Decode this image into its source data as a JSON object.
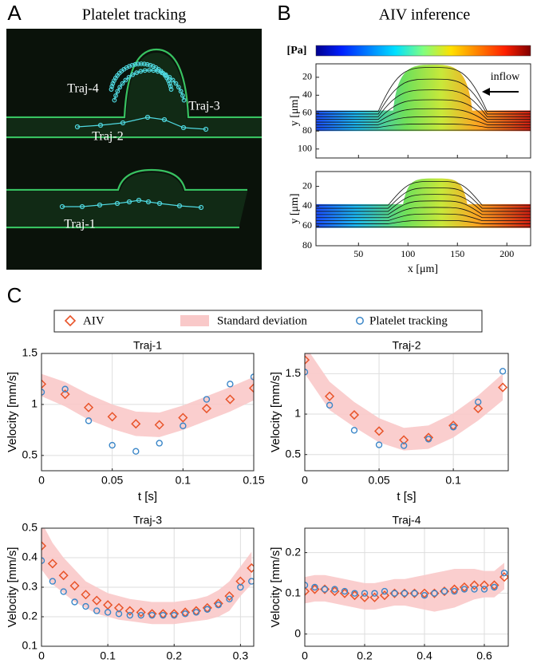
{
  "panel_labels": [
    "A",
    "B",
    "C"
  ],
  "panel_a": {
    "title": "Platelet tracking",
    "trajectory_labels": [
      "Traj-1",
      "Traj-2",
      "Traj-3",
      "Traj-4"
    ]
  },
  "panel_b": {
    "title": "AIV inference",
    "colorbar_label": "[Pa]",
    "annotation": "inflow",
    "xlim": [
      7,
      224
    ],
    "xticks": [
      50,
      100,
      150,
      200
    ],
    "xlabel": "x [μm]",
    "ylabel": "y [μm]",
    "plots": [
      {
        "ylim": [
          5,
          110
        ],
        "yticks": [
          20,
          40,
          60,
          80,
          100
        ]
      },
      {
        "ylim": [
          5,
          80
        ],
        "yticks": [
          20,
          40,
          60,
          80
        ]
      }
    ]
  },
  "legend": [
    {
      "name": "AIV",
      "color": "#e8542a",
      "marker": "diamond"
    },
    {
      "name": "Standard deviation",
      "color": "#f9c9c9",
      "marker": "band"
    },
    {
      "name": "Platelet tracking",
      "color": "#3a86c8",
      "marker": "circle"
    }
  ],
  "chart_data": [
    {
      "type": "scatter",
      "title": "Traj-1",
      "xlabel": "t [s]",
      "ylabel": "Velocity [mm/s]",
      "grid": true,
      "x": [
        0,
        0.0167,
        0.0333,
        0.05,
        0.0667,
        0.0833,
        0.1,
        0.1167,
        0.1333,
        0.15
      ],
      "xlim": [
        0,
        0.15
      ],
      "xticks": [
        0,
        0.05,
        0.1,
        0.15
      ],
      "ylim": [
        0.35,
        1.5
      ],
      "yticks": [
        0.5,
        1,
        1.5
      ],
      "series": [
        {
          "values": [
            1.2,
            1.1,
            0.97,
            0.88,
            0.81,
            0.8,
            0.87,
            0.96,
            1.05,
            1.16
          ]
        },
        {
          "upper": [
            1.3,
            1.22,
            1.1,
            1.0,
            0.93,
            0.92,
            0.99,
            1.08,
            1.17,
            1.27
          ],
          "lower": [
            1.08,
            0.98,
            0.85,
            0.76,
            0.69,
            0.68,
            0.75,
            0.84,
            0.93,
            1.04
          ]
        },
        {
          "values": [
            1.12,
            1.15,
            0.84,
            0.6,
            0.54,
            0.62,
            0.79,
            1.05,
            1.2,
            1.27
          ]
        }
      ]
    },
    {
      "type": "scatter",
      "title": "Traj-2",
      "xlabel": "t [s]",
      "ylabel": "Velocity [mm/s]",
      "grid": true,
      "x": [
        0,
        0.0167,
        0.0333,
        0.05,
        0.0667,
        0.0833,
        0.1,
        0.1167,
        0.1333
      ],
      "xlim": [
        0,
        0.137
      ],
      "xticks": [
        0,
        0.05,
        0.1
      ],
      "ylim": [
        0.3,
        1.75
      ],
      "yticks": [
        0.5,
        1,
        1.5
      ],
      "series": [
        {
          "values": [
            1.67,
            1.22,
            0.99,
            0.79,
            0.68,
            0.71,
            0.86,
            1.07,
            1.33
          ]
        },
        {
          "upper": [
            1.85,
            1.4,
            1.15,
            0.95,
            0.83,
            0.86,
            1.01,
            1.23,
            1.5
          ],
          "lower": [
            1.5,
            1.05,
            0.84,
            0.65,
            0.55,
            0.57,
            0.71,
            0.92,
            1.17
          ]
        },
        {
          "values": [
            1.52,
            1.11,
            0.8,
            0.62,
            0.61,
            0.69,
            0.84,
            1.15,
            1.53
          ]
        }
      ]
    },
    {
      "type": "scatter",
      "title": "Traj-3",
      "xlabel": "t [s]",
      "ylabel": "Velocity [mm/s]",
      "grid": true,
      "x": [
        0,
        0.0167,
        0.0333,
        0.05,
        0.0667,
        0.0833,
        0.1,
        0.1167,
        0.1333,
        0.15,
        0.1667,
        0.1833,
        0.2,
        0.2167,
        0.2333,
        0.25,
        0.2667,
        0.2833,
        0.3,
        0.3167
      ],
      "xlim": [
        0,
        0.32
      ],
      "xticks": [
        0,
        0.1,
        0.2,
        0.3
      ],
      "ylim": [
        0.1,
        0.5
      ],
      "yticks": [
        0.1,
        0.2,
        0.3,
        0.4,
        0.5
      ],
      "series": [
        {
          "values": [
            0.44,
            0.38,
            0.34,
            0.305,
            0.275,
            0.255,
            0.24,
            0.23,
            0.22,
            0.215,
            0.21,
            0.21,
            0.21,
            0.215,
            0.22,
            0.23,
            0.245,
            0.27,
            0.32,
            0.365
          ]
        },
        {
          "upper": [
            0.52,
            0.45,
            0.4,
            0.36,
            0.32,
            0.3,
            0.28,
            0.27,
            0.26,
            0.255,
            0.25,
            0.25,
            0.25,
            0.255,
            0.26,
            0.27,
            0.29,
            0.32,
            0.37,
            0.42
          ],
          "lower": [
            0.36,
            0.31,
            0.28,
            0.25,
            0.23,
            0.21,
            0.2,
            0.19,
            0.185,
            0.18,
            0.175,
            0.175,
            0.175,
            0.18,
            0.185,
            0.19,
            0.2,
            0.22,
            0.27,
            0.31
          ]
        },
        {
          "values": [
            0.39,
            0.32,
            0.285,
            0.25,
            0.235,
            0.22,
            0.215,
            0.21,
            0.205,
            0.205,
            0.205,
            0.205,
            0.205,
            0.21,
            0.215,
            0.225,
            0.24,
            0.26,
            0.3,
            0.32
          ]
        }
      ]
    },
    {
      "type": "scatter",
      "title": "Traj-4",
      "xlabel": "t [s]",
      "ylabel": "Velocity [mm/s]",
      "grid": true,
      "x": [
        0,
        0.0333,
        0.0667,
        0.1,
        0.1333,
        0.1667,
        0.2,
        0.2333,
        0.2667,
        0.3,
        0.3333,
        0.3667,
        0.4,
        0.4333,
        0.4667,
        0.5,
        0.5333,
        0.5667,
        0.6,
        0.6333,
        0.6667
      ],
      "xlim": [
        0,
        0.68
      ],
      "xticks": [
        0,
        0.2,
        0.4,
        0.6
      ],
      "ylim": [
        -0.03,
        0.26
      ],
      "yticks": [
        0,
        0.1,
        0.2
      ],
      "series": [
        {
          "values": [
            0.105,
            0.11,
            0.11,
            0.105,
            0.1,
            0.095,
            0.09,
            0.09,
            0.095,
            0.1,
            0.1,
            0.1,
            0.1,
            0.1,
            0.105,
            0.11,
            0.115,
            0.12,
            0.12,
            0.12,
            0.14
          ]
        },
        {
          "upper": [
            0.14,
            0.145,
            0.145,
            0.14,
            0.135,
            0.13,
            0.125,
            0.125,
            0.13,
            0.135,
            0.135,
            0.14,
            0.145,
            0.15,
            0.155,
            0.16,
            0.16,
            0.16,
            0.155,
            0.155,
            0.175
          ],
          "lower": [
            0.075,
            0.08,
            0.08,
            0.075,
            0.07,
            0.065,
            0.06,
            0.06,
            0.065,
            0.07,
            0.07,
            0.065,
            0.06,
            0.055,
            0.06,
            0.065,
            0.075,
            0.085,
            0.09,
            0.09,
            0.11
          ]
        },
        {
          "values": [
            0.12,
            0.115,
            0.11,
            0.11,
            0.105,
            0.1,
            0.1,
            0.1,
            0.105,
            0.1,
            0.1,
            0.1,
            0.095,
            0.1,
            0.105,
            0.105,
            0.11,
            0.11,
            0.11,
            0.115,
            0.15
          ]
        }
      ]
    }
  ]
}
